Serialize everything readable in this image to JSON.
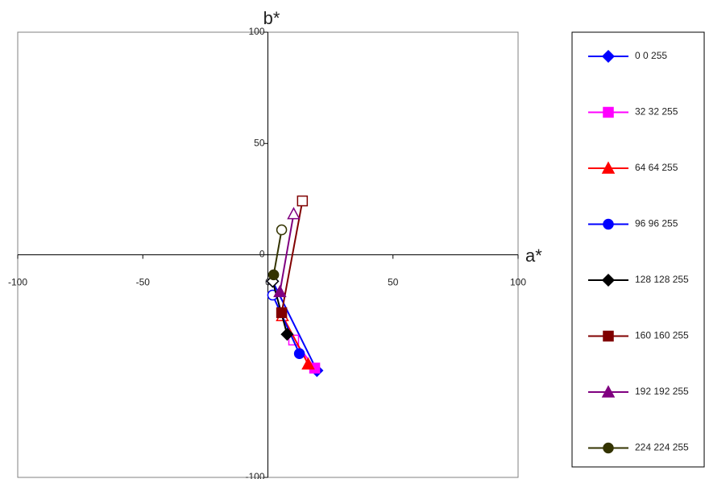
{
  "chart_data": {
    "type": "scatter",
    "x_label": "a*",
    "y_label": "b*",
    "xlim": [
      -100,
      100
    ],
    "ylim": [
      -100,
      100
    ],
    "xticks": [
      -100,
      -50,
      0,
      50,
      100
    ],
    "yticks": [
      -100,
      0,
      50,
      100
    ],
    "legend": "right",
    "series": [
      {
        "name": "0 0 255",
        "color": "#0000ff",
        "marker": "diamond",
        "x": [
          19.6,
          1.9
        ],
        "values": [
          -52,
          -11.9
        ]
      },
      {
        "name": "32 32 255",
        "color": "#ff00ff",
        "marker": "square",
        "x": [
          18.7,
          10.3
        ],
        "values": [
          -50.9,
          -38.3
        ]
      },
      {
        "name": "64 64 255",
        "color": "#ff0000",
        "marker": "triangle",
        "x": [
          16.1,
          5.8
        ],
        "values": [
          -49.1,
          -27.4
        ]
      },
      {
        "name": "96 96 255",
        "color": "#0000ff",
        "marker": "circle",
        "x": [
          12.6,
          1.9
        ],
        "values": [
          -44.4,
          -18.1
        ]
      },
      {
        "name": "128 128 255",
        "color": "#000000",
        "marker": "diamond",
        "x": [
          7.7,
          1.9
        ],
        "values": [
          -35.7,
          -11.9
        ]
      },
      {
        "name": "160 160 255",
        "color": "#800000",
        "marker": "square",
        "x": [
          5.5,
          13.8
        ],
        "values": [
          -26,
          24.2
        ]
      },
      {
        "name": "192 192 255",
        "color": "#800080",
        "marker": "triangle",
        "x": [
          4.8,
          10.3
        ],
        "values": [
          -16.6,
          18.4
        ]
      },
      {
        "name": "224 224 255",
        "color": "#333300",
        "marker": "circle",
        "x": [
          2.3,
          5.5
        ],
        "values": [
          -9,
          11.2
        ]
      }
    ]
  }
}
